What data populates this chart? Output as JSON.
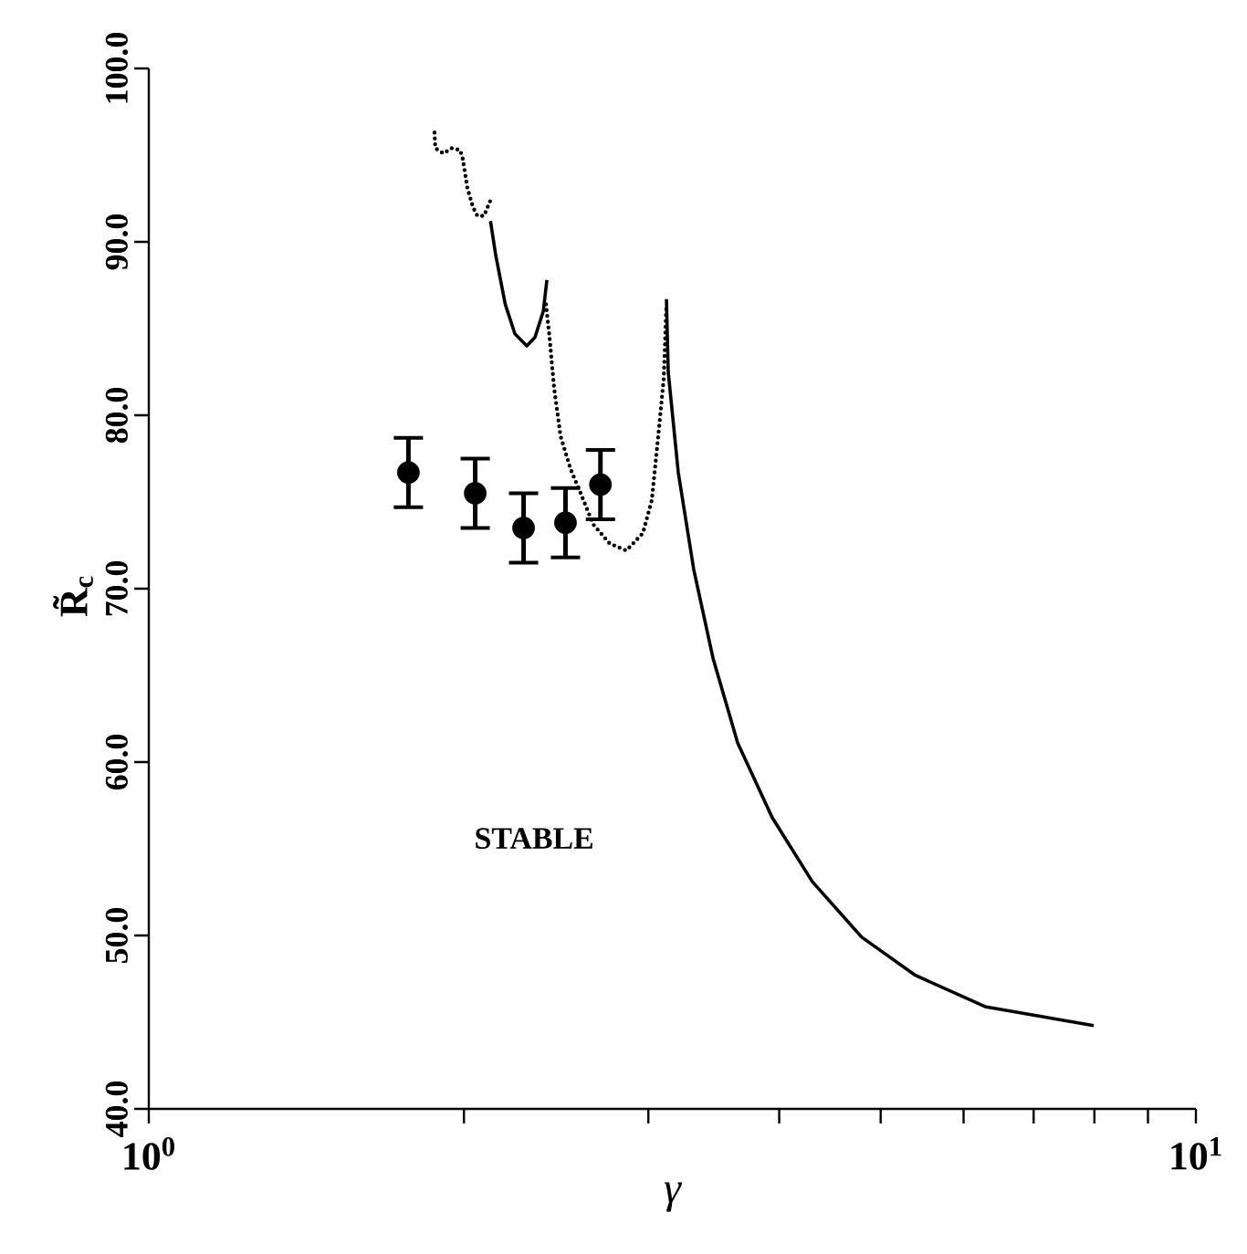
{
  "chart_data": {
    "type": "line",
    "xlabel": "γ",
    "ylabel": "R̃$_{c}$",
    "log": "x",
    "grid": false,
    "marker": "none",
    "xlim": [
      1,
      10
    ],
    "ylim": [
      40,
      100
    ],
    "xticks": [
      {
        "value": 1,
        "label": "10$^{0}$"
      },
      {
        "value": 2,
        "label": null
      },
      {
        "value": 3,
        "label": null
      },
      {
        "value": 4,
        "label": null
      },
      {
        "value": 5,
        "label": null
      },
      {
        "value": 6,
        "label": null
      },
      {
        "value": 7,
        "label": null
      },
      {
        "value": 8,
        "label": null
      },
      {
        "value": 9,
        "label": null
      },
      {
        "value": 10,
        "label": "10$^{1}$"
      }
    ],
    "yticks": [
      {
        "value": 40,
        "label": "40.0"
      },
      {
        "value": 50,
        "label": "50.0"
      },
      {
        "value": 60,
        "label": "60.0"
      },
      {
        "value": 70,
        "label": "70.0"
      },
      {
        "value": 80,
        "label": "80.0"
      },
      {
        "value": 90,
        "label": "90.0"
      },
      {
        "value": 100,
        "label": "100.0"
      }
    ],
    "series": [
      {
        "line_style": "dotted",
        "color": "#000000",
        "x": [
          1.875,
          1.878,
          1.912,
          1.947,
          1.983,
          1.995,
          2.015,
          2.04,
          2.06,
          2.09,
          2.12
        ],
        "values": [
          96.3,
          95.4,
          95.1,
          95.4,
          95.3,
          94.8,
          93.1,
          92.0,
          91.5,
          91.5,
          92.4
        ]
      },
      {
        "line_style": "solid",
        "color": "#000000",
        "x": [
          2.12,
          2.145,
          2.19,
          2.237,
          2.296,
          2.338,
          2.381,
          2.4
        ],
        "values": [
          91.2,
          89.2,
          86.4,
          84.7,
          84.0,
          84.5,
          86.0,
          87.8
        ]
      },
      {
        "line_style": "dotted",
        "color": "#000000",
        "x": [
          2.395,
          2.414,
          2.438,
          2.473,
          2.528,
          2.585,
          2.658,
          2.756,
          2.858,
          2.964,
          3.023,
          3.066,
          3.103,
          3.122
        ],
        "values": [
          86.4,
          84.5,
          81.6,
          78.8,
          76.9,
          75.5,
          73.7,
          72.6,
          72.2,
          73.2,
          75.1,
          78.8,
          82.1,
          86.4
        ]
      },
      {
        "line_style": "solid",
        "color": "#000000",
        "x": [
          3.122,
          3.134,
          3.204,
          3.315,
          3.458,
          3.651,
          3.939,
          4.303,
          4.796,
          5.398,
          6.29,
          7.989
        ],
        "values": [
          86.7,
          82.5,
          76.7,
          71.1,
          66.0,
          61.1,
          56.8,
          53.1,
          49.9,
          47.7,
          45.9,
          44.8
        ]
      },
      {
        "type": "scatter",
        "marker": "circle",
        "color": "#000000",
        "x": [
          1.77,
          2.05,
          2.28,
          2.5,
          2.7
        ],
        "values": [
          76.7,
          75.5,
          73.5,
          73.8,
          76.0
        ],
        "errors": [
          2.0,
          2.0,
          2.0,
          2.0,
          2.0
        ]
      }
    ],
    "annotations": [
      "STABLE"
    ]
  }
}
